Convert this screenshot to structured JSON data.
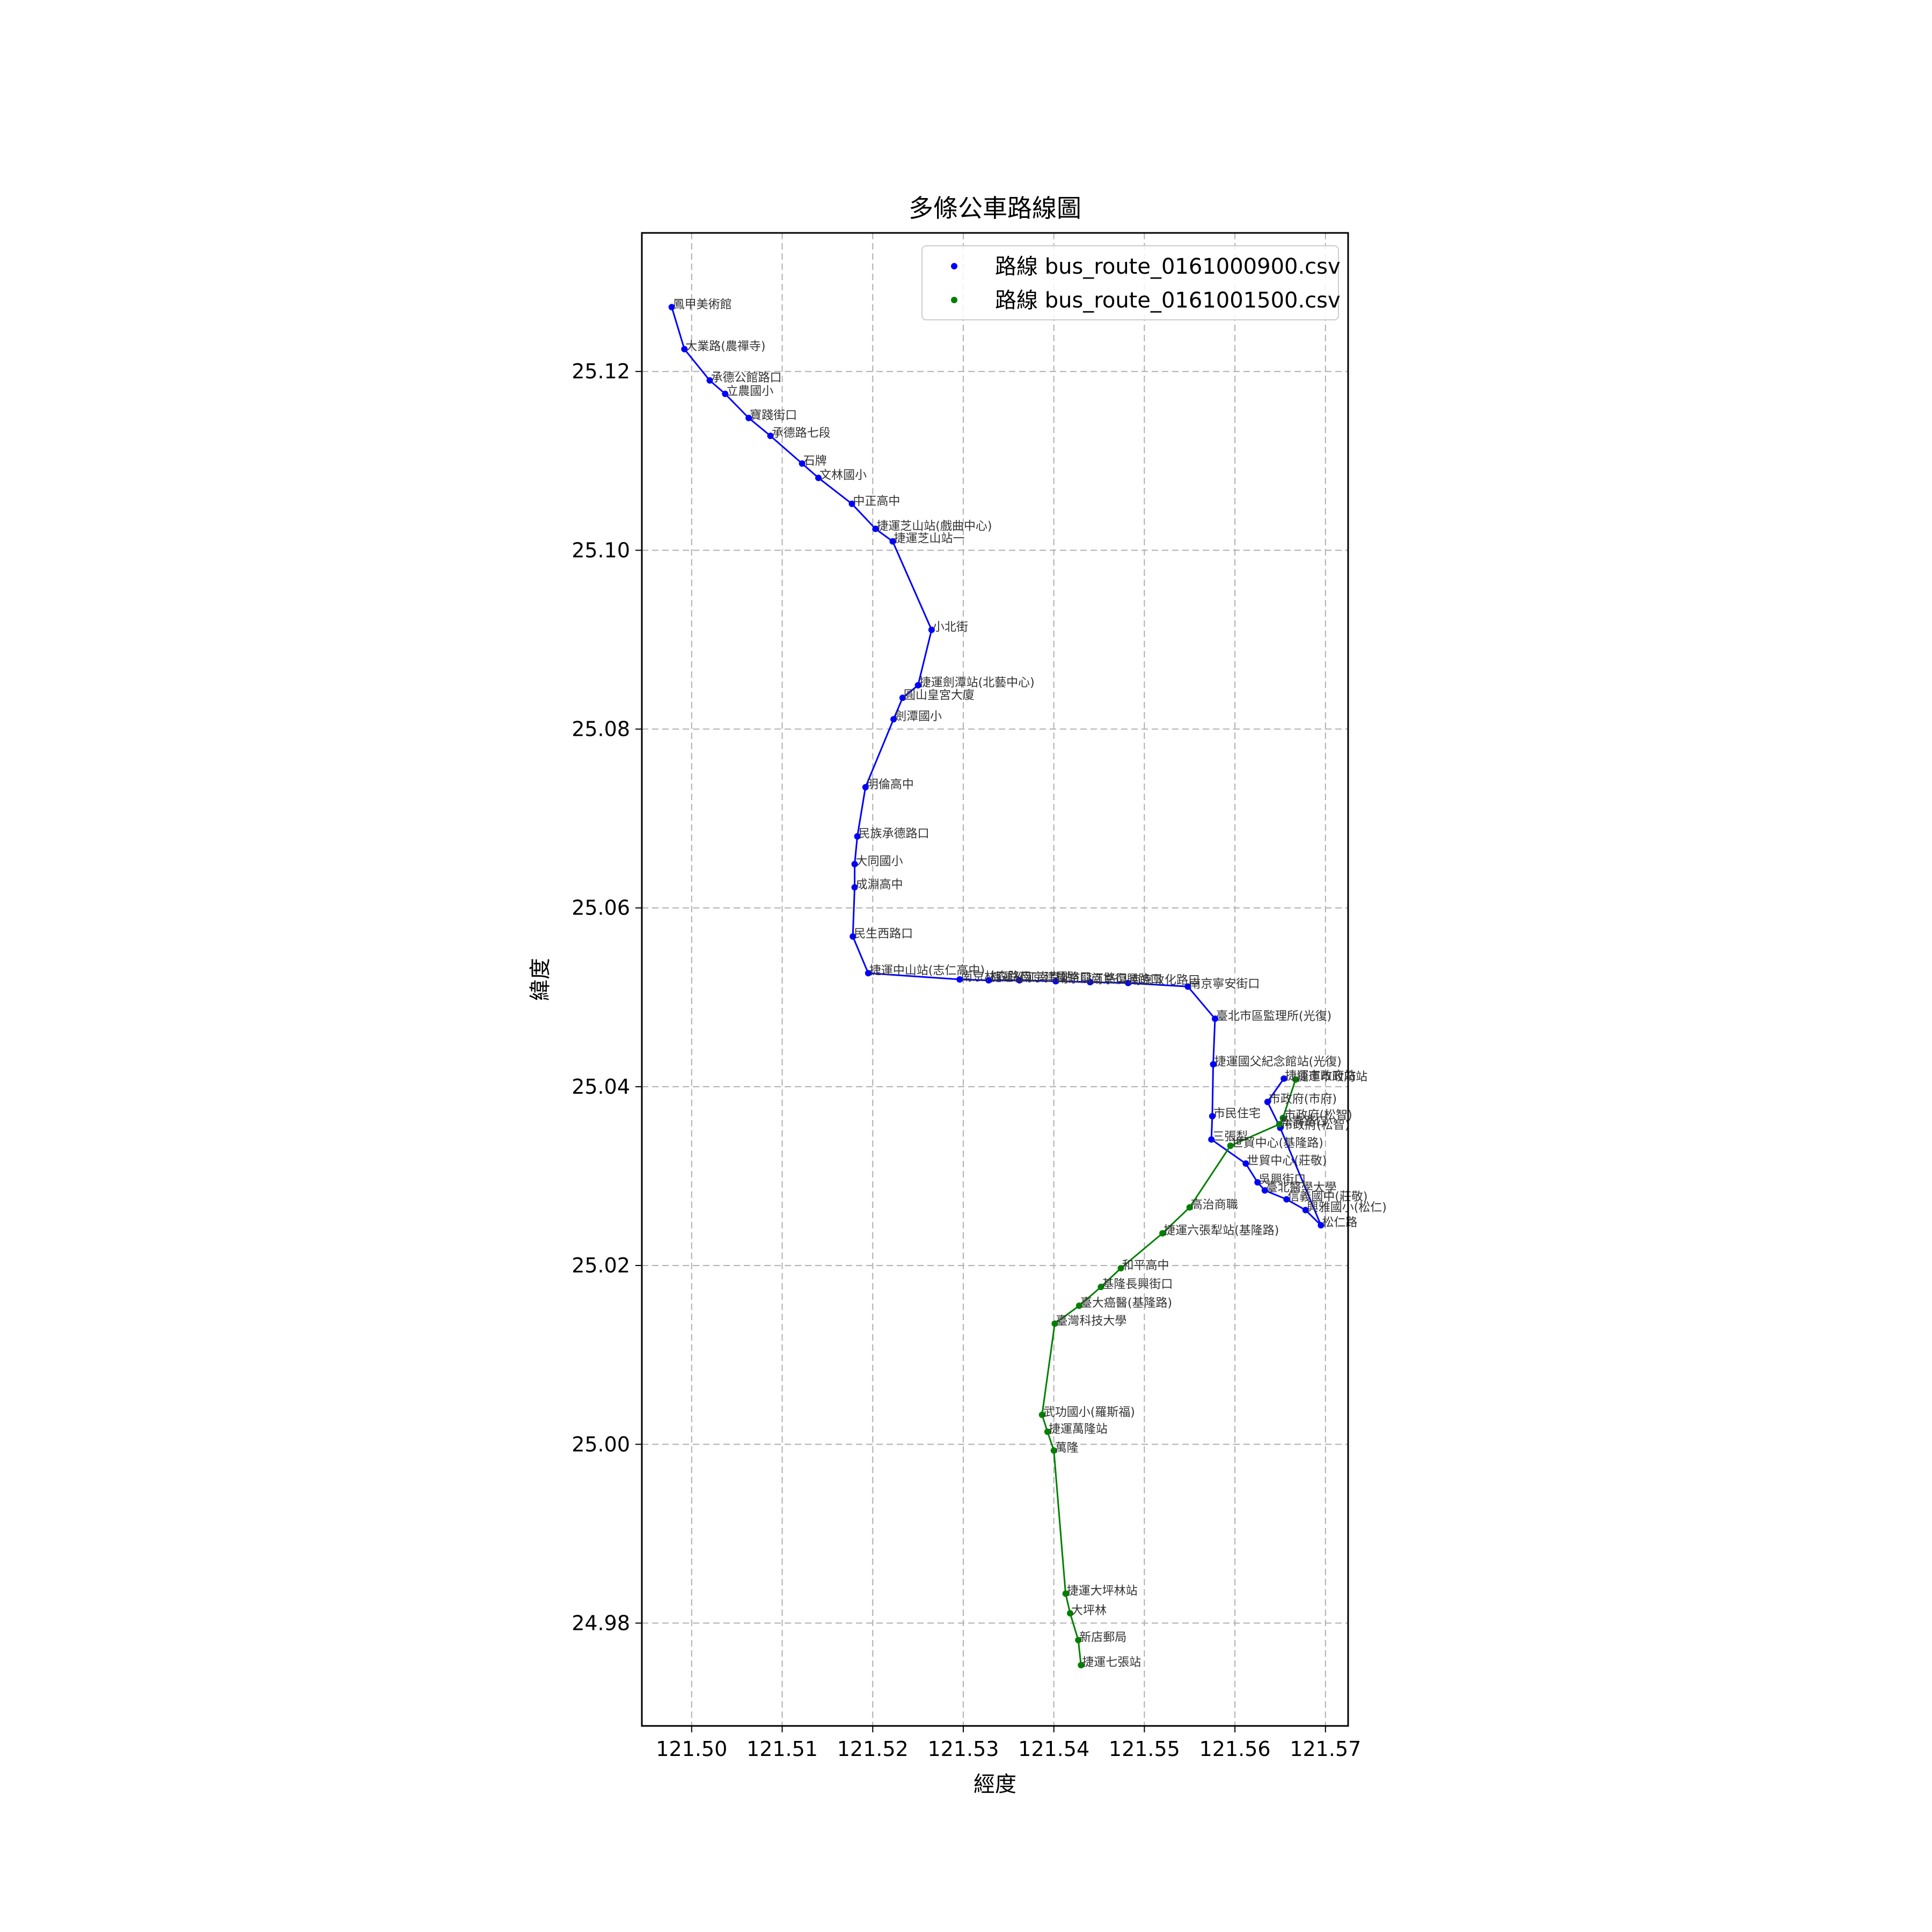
{
  "chart_data": {
    "type": "line",
    "title": "多條公車路線圖",
    "xlabel": "經度",
    "ylabel": "緯度",
    "xlim": [
      121.4945,
      121.5725
    ],
    "ylim": [
      24.9685,
      25.1355
    ],
    "xticks": [
      121.5,
      121.51,
      121.52,
      121.53,
      121.54,
      121.55,
      121.56,
      121.57
    ],
    "xtick_labels": [
      "121.50",
      "121.51",
      "121.52",
      "121.53",
      "121.54",
      "121.55",
      "121.56",
      "121.57"
    ],
    "yticks": [
      24.98,
      25.0,
      25.02,
      25.04,
      25.06,
      25.08,
      25.1,
      25.12
    ],
    "ytick_labels": [
      "24.98",
      "25.00",
      "25.02",
      "25.04",
      "25.06",
      "25.08",
      "25.10",
      "25.12"
    ],
    "grid": true,
    "legend_position": "top-right",
    "series": [
      {
        "name": "路線 bus_route_0161000900.csv",
        "color": "#0000ff",
        "points": [
          {
            "x": 121.4978,
            "y": 25.1272,
            "label": "鳳甲美術館"
          },
          {
            "x": 121.4992,
            "y": 25.1225,
            "label": "大業路(農禪寺)"
          },
          {
            "x": 121.502,
            "y": 25.119,
            "label": "承德公館路口"
          },
          {
            "x": 121.5037,
            "y": 25.1175,
            "label": "立農國小"
          },
          {
            "x": 121.5063,
            "y": 25.1148,
            "label": "寶踐街口"
          },
          {
            "x": 121.5087,
            "y": 25.1128,
            "label": "承德路七段"
          },
          {
            "x": 121.5122,
            "y": 25.1097,
            "label": "石牌"
          },
          {
            "x": 121.514,
            "y": 25.1081,
            "label": "文林國小"
          },
          {
            "x": 121.5177,
            "y": 25.1052,
            "label": "中正高中"
          },
          {
            "x": 121.5203,
            "y": 25.1024,
            "label": "捷運芝山站(戲曲中心)"
          },
          {
            "x": 121.5222,
            "y": 25.101,
            "label": "捷運芝山站一"
          },
          {
            "x": 121.5265,
            "y": 25.0911,
            "label": "小北街"
          },
          {
            "x": 121.525,
            "y": 25.0849,
            "label": "捷運劍潭站(北藝中心)"
          },
          {
            "x": 121.5233,
            "y": 25.0835,
            "label": "圓山皇宮大廈"
          },
          {
            "x": 121.5223,
            "y": 25.0811,
            "label": "劍潭國小"
          },
          {
            "x": 121.5192,
            "y": 25.0735,
            "label": "明倫高中"
          },
          {
            "x": 121.5183,
            "y": 25.068,
            "label": "民族承德路口"
          },
          {
            "x": 121.518,
            "y": 25.0649,
            "label": "大同國小"
          },
          {
            "x": 121.518,
            "y": 25.0623,
            "label": "成淵高中"
          },
          {
            "x": 121.5178,
            "y": 25.0568,
            "label": "民生西路口"
          },
          {
            "x": 121.5195,
            "y": 25.0527,
            "label": "捷運中山站(志仁高中)"
          },
          {
            "x": 121.5296,
            "y": 25.052,
            "label": "南京林森路口"
          },
          {
            "x": 121.5328,
            "y": 25.0519,
            "label": "捷運松江南京站"
          },
          {
            "x": 121.5362,
            "y": 25.0519,
            "label": "南京建國路口"
          },
          {
            "x": 121.5402,
            "y": 25.0518,
            "label": "南京龍江路口"
          },
          {
            "x": 121.544,
            "y": 25.0517,
            "label": "南京復興路口"
          },
          {
            "x": 121.5482,
            "y": 25.0516,
            "label": "南京敦化路口"
          },
          {
            "x": 121.5548,
            "y": 25.0512,
            "label": "南京寧安街口"
          },
          {
            "x": 121.5578,
            "y": 25.0476,
            "label": "臺北市區監理所(光復)"
          },
          {
            "x": 121.5576,
            "y": 25.0425,
            "label": "捷運國父紀念館站(光復)"
          },
          {
            "x": 121.5575,
            "y": 25.0367,
            "label": "市民住宅"
          },
          {
            "x": 121.5574,
            "y": 25.0341,
            "label": "三張犁"
          },
          {
            "x": 121.5612,
            "y": 25.0314,
            "label": "世貿中心(莊敬)"
          },
          {
            "x": 121.5625,
            "y": 25.0293,
            "label": "吳興街口"
          },
          {
            "x": 121.5633,
            "y": 25.0284,
            "label": "臺北醫學大學"
          },
          {
            "x": 121.5657,
            "y": 25.0274,
            "label": "信義國中(莊敬)"
          },
          {
            "x": 121.5678,
            "y": 25.0262,
            "label": "興雅國小(松仁)"
          },
          {
            "x": 121.5695,
            "y": 25.0245,
            "label": "松仁路"
          },
          {
            "x": 121.565,
            "y": 25.0354,
            "label": "市政府(松智)"
          },
          {
            "x": 121.5636,
            "y": 25.0383,
            "label": "市政府(市府)"
          },
          {
            "x": 121.5654,
            "y": 25.0409,
            "label": "捷運市政府站"
          }
        ]
      },
      {
        "name": "路線 bus_route_0161001500.csv",
        "color": "#008000",
        "points": [
          {
            "x": 121.5667,
            "y": 25.0408,
            "label": "捷運市政府站"
          },
          {
            "x": 121.5653,
            "y": 25.0365,
            "label": "市政府(松智)"
          },
          {
            "x": 121.5649,
            "y": 25.0358,
            "label": "松壽路口"
          },
          {
            "x": 121.5595,
            "y": 25.0334,
            "label": "世貿中心(基隆路)"
          },
          {
            "x": 121.555,
            "y": 25.0265,
            "label": "高治商職"
          },
          {
            "x": 121.552,
            "y": 25.0236,
            "label": "捷運六張犁站(基隆路)"
          },
          {
            "x": 121.5474,
            "y": 25.0197,
            "label": "和平高中"
          },
          {
            "x": 121.5452,
            "y": 25.0176,
            "label": "基隆長興街口"
          },
          {
            "x": 121.5428,
            "y": 25.0155,
            "label": "臺大癌醫(基隆路)"
          },
          {
            "x": 121.5401,
            "y": 25.0135,
            "label": "臺灣科技大學"
          },
          {
            "x": 121.5387,
            "y": 25.0033,
            "label": "武功國小(羅斯福)"
          },
          {
            "x": 121.5393,
            "y": 25.0014,
            "label": "捷運萬隆站"
          },
          {
            "x": 121.54,
            "y": 24.9993,
            "label": "萬隆"
          },
          {
            "x": 121.5413,
            "y": 24.9833,
            "label": "捷運大坪林站"
          },
          {
            "x": 121.5418,
            "y": 24.9811,
            "label": "大坪林"
          },
          {
            "x": 121.5427,
            "y": 24.9781,
            "label": "新店郵局"
          },
          {
            "x": 121.543,
            "y": 24.9753,
            "label": "捷運七張站"
          }
        ]
      }
    ]
  }
}
